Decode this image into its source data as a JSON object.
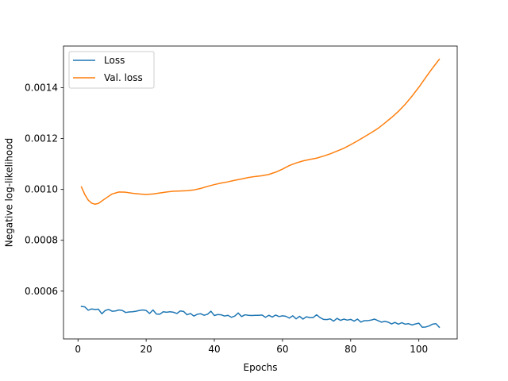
{
  "chart_data": {
    "type": "line",
    "title": "",
    "xlabel": "Epochs",
    "ylabel": "Negative log-likelihood",
    "xlim": [
      -4.25,
      111.25
    ],
    "ylim": [
      0.000412,
      0.001564
    ],
    "xticks": [
      0,
      20,
      40,
      60,
      80,
      100
    ],
    "yticks": [
      0.0006,
      0.0008,
      0.001,
      0.0012,
      0.0014
    ],
    "ytick_labels": [
      "0.0006",
      "0.0008",
      "0.0010",
      "0.0012",
      "0.0014"
    ],
    "grid": false,
    "legend_position": "upper-left",
    "series": [
      {
        "name": "Loss",
        "color": "#1f77b4",
        "x": [
          1,
          2,
          3,
          4,
          5,
          6,
          7,
          8,
          9,
          10,
          11,
          12,
          13,
          14,
          15,
          16,
          17,
          18,
          19,
          20,
          21,
          22,
          23,
          24,
          25,
          26,
          27,
          28,
          29,
          30,
          31,
          32,
          33,
          34,
          35,
          36,
          37,
          38,
          39,
          40,
          41,
          42,
          43,
          44,
          45,
          46,
          47,
          48,
          49,
          50,
          51,
          52,
          53,
          54,
          55,
          56,
          57,
          58,
          59,
          60,
          61,
          62,
          63,
          64,
          65,
          66,
          67,
          68,
          69,
          70,
          71,
          72,
          73,
          74,
          75,
          76,
          77,
          78,
          79,
          80,
          81,
          82,
          83,
          84,
          85,
          86,
          87,
          88,
          89,
          90,
          91,
          92,
          93,
          94,
          95,
          96,
          97,
          98,
          99,
          100,
          101,
          102,
          103,
          104,
          105,
          106
        ],
        "y": [
          0.00054,
          0.000538,
          0.000525,
          0.00053,
          0.000528,
          0.000529,
          0.000511,
          0.000524,
          0.000528,
          0.000521,
          0.000522,
          0.000526,
          0.000524,
          0.000516,
          0.000518,
          0.000519,
          0.000521,
          0.000524,
          0.000526,
          0.000524,
          0.000512,
          0.000526,
          0.00051,
          0.000509,
          0.000519,
          0.000517,
          0.000519,
          0.000517,
          0.000512,
          0.000522,
          0.00052,
          0.000507,
          0.000512,
          0.000502,
          0.000509,
          0.000511,
          0.000505,
          0.000509,
          0.000521,
          0.000504,
          0.000508,
          0.000507,
          0.000502,
          0.000505,
          0.000497,
          0.000502,
          0.000514,
          0.0005,
          0.000507,
          0.000505,
          0.000504,
          0.000505,
          0.000505,
          0.000506,
          0.000497,
          0.000505,
          0.000498,
          0.000506,
          0.0005,
          0.000503,
          0.000501,
          0.000494,
          0.000503,
          0.000491,
          0.000501,
          0.00049,
          0.000499,
          0.000496,
          0.000496,
          0.000507,
          0.000496,
          0.000489,
          0.000488,
          0.000491,
          0.000482,
          0.000493,
          0.000485,
          0.00049,
          0.000486,
          0.000489,
          0.000482,
          0.00049,
          0.000478,
          0.000484,
          0.000484,
          0.000486,
          0.00049,
          0.000484,
          0.000478,
          0.000481,
          0.000478,
          0.000471,
          0.000477,
          0.00047,
          0.000476,
          0.00047,
          0.000472,
          0.000467,
          0.000471,
          0.000474,
          0.000458,
          0.000459,
          0.000463,
          0.00047,
          0.000472,
          0.000458
        ]
      },
      {
        "name": "Val. loss",
        "color": "#ff7f0e",
        "x": [
          1,
          2,
          3,
          4,
          5,
          6,
          8,
          10,
          12,
          14,
          16,
          18,
          20,
          22,
          24,
          26,
          28,
          30,
          32,
          34,
          36,
          38,
          40,
          42,
          44,
          46,
          48,
          50,
          52,
          54,
          56,
          58,
          60,
          62,
          64,
          66,
          68,
          70,
          72,
          74,
          76,
          78,
          80,
          82,
          84,
          86,
          88,
          90,
          92,
          94,
          96,
          98,
          100,
          102,
          104,
          106
        ],
        "y": [
          0.00101,
          0.00098,
          0.000958,
          0.000946,
          0.000942,
          0.000945,
          0.000964,
          0.000982,
          0.00099,
          0.000989,
          0.000985,
          0.000982,
          0.00098,
          0.000982,
          0.000986,
          0.00099,
          0.000993,
          0.000994,
          0.000995,
          0.000998,
          0.001004,
          0.001012,
          0.001019,
          0.001025,
          0.00103,
          0.001036,
          0.001041,
          0.001047,
          0.001051,
          0.001054,
          0.001059,
          0.001068,
          0.00108,
          0.001094,
          0.001104,
          0.001112,
          0.001118,
          0.001123,
          0.001131,
          0.00114,
          0.001151,
          0.001162,
          0.001176,
          0.001191,
          0.001207,
          0.001223,
          0.00124,
          0.001261,
          0.001283,
          0.001307,
          0.001335,
          0.001367,
          0.001402,
          0.00144,
          0.001477,
          0.001512
        ]
      }
    ]
  }
}
